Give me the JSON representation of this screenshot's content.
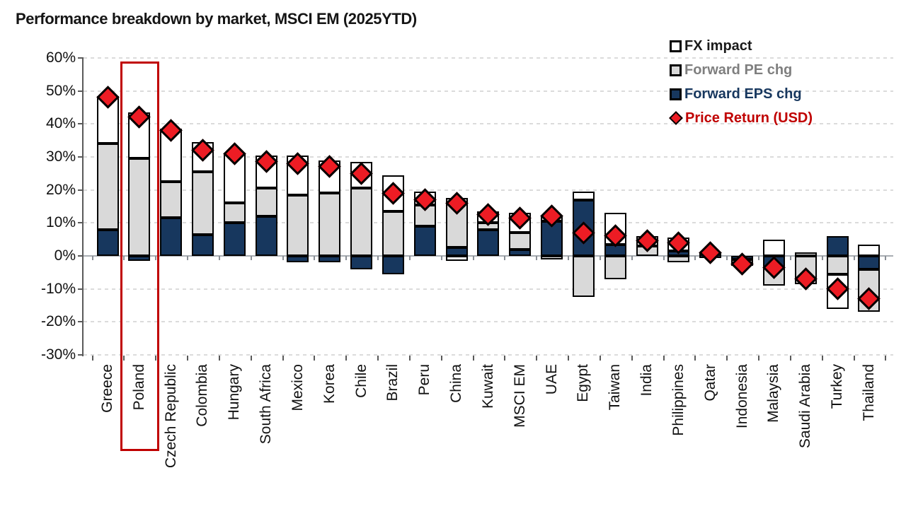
{
  "chart_data": {
    "type": "bar",
    "stacked": true,
    "title": "Performance breakdown by market, MSCI EM (2025YTD)",
    "y_axis": {
      "min": -30,
      "max": 60,
      "step": 10,
      "tick_labels": [
        "60%",
        "50%",
        "40%",
        "30%",
        "20%",
        "10%",
        "0%",
        "-10%",
        "-20%",
        "-30%"
      ],
      "grid": "dashed"
    },
    "categories": [
      "Greece",
      "Poland",
      "Czech Republic",
      "Colombia",
      "Hungary",
      "South Africa",
      "Mexico",
      "Korea",
      "Chile",
      "Brazil",
      "Peru",
      "China",
      "Kuwait",
      "MSCI EM",
      "UAE",
      "Egypt",
      "Taiwan",
      "India",
      "Philippines",
      "Qatar",
      "Indonesia",
      "Malaysia",
      "Saudi Arabia",
      "Turkey",
      "Thailand"
    ],
    "series": [
      {
        "name": "Forward EPS chg",
        "type": "bar",
        "color": "#17375E",
        "values": [
          8,
          -1.5,
          11.5,
          6.5,
          10,
          12,
          -2,
          -2,
          -4,
          -5.5,
          9,
          2.5,
          8,
          2,
          10.5,
          17,
          3.5,
          0,
          1.5,
          0.5,
          -1,
          -3.5,
          0,
          6,
          -4
        ]
      },
      {
        "name": "Forward PE chg",
        "type": "bar",
        "color": "#D9D9D9",
        "values": [
          26,
          29.5,
          11,
          19,
          6,
          8.5,
          18.5,
          19,
          20.5,
          13.5,
          6.5,
          15,
          2,
          5,
          1.5,
          -12.5,
          -7,
          3,
          -2,
          0,
          -1,
          -5.5,
          -8.5,
          -5.5,
          -13
        ]
      },
      {
        "name": "FX impact",
        "type": "bar",
        "color": "#FFFFFF",
        "values": [
          14.5,
          14,
          16,
          9,
          15,
          10,
          12,
          10,
          8,
          11,
          4,
          -1.5,
          3.5,
          6,
          -0.5,
          2.5,
          9.5,
          3,
          4,
          0.5,
          -0.5,
          5,
          1,
          -10.5,
          3.5
        ]
      },
      {
        "name": "Price Return (USD)",
        "type": "marker",
        "shape": "diamond",
        "color": "#ED1C24",
        "values": [
          48,
          42,
          38,
          32,
          31,
          28.5,
          28,
          27,
          25,
          19,
          17,
          16,
          12.5,
          11.5,
          12,
          7,
          6,
          4.5,
          4,
          1,
          -2.5,
          -3.5,
          -7,
          -10,
          -13
        ]
      }
    ],
    "legend": {
      "position": "top-right",
      "items": [
        {
          "label": "FX impact",
          "swatch": "square",
          "fill": "#FFFFFF",
          "text_color": "#1a1a1a"
        },
        {
          "label": "Forward PE chg",
          "swatch": "square",
          "fill": "#D9D9D9",
          "text_color": "#7f7f7f"
        },
        {
          "label": "Forward EPS chg",
          "swatch": "square",
          "fill": "#17375E",
          "text_color": "#17375E"
        },
        {
          "label": "Price Return (USD)",
          "swatch": "diamond",
          "fill": "#ED1C24",
          "text_color": "#C00000"
        }
      ]
    },
    "highlight": {
      "category": "Poland",
      "box_color": "#C00000"
    }
  }
}
